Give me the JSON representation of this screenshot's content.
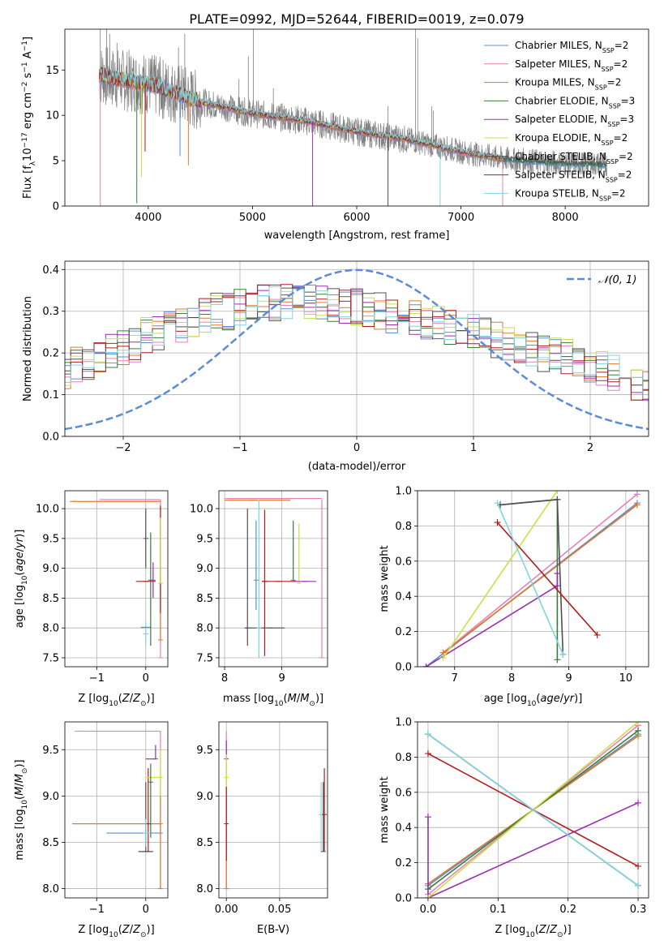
{
  "figure_title": "PLATE=0992, MJD=52644, FIBERID=0019, z=0.079",
  "series_legend": [
    {
      "pre": "Chabrier MILES, N",
      "sub": "SSP",
      "post": "=2",
      "color": "#5b8bd9"
    },
    {
      "pre": "Salpeter MILES, N",
      "sub": "SSP",
      "post": "=2",
      "color": "#e880b8"
    },
    {
      "pre": "Kroupa MILES, N",
      "sub": "SSP",
      "post": "=2",
      "color": "#e07a2a"
    },
    {
      "pre": "Chabrier ELODIE, N",
      "sub": "SSP",
      "post": "=3",
      "color": "#3a7d3a"
    },
    {
      "pre": "Salpeter ELODIE, N",
      "sub": "SSP",
      "post": "=3",
      "color": "#9a2fb0"
    },
    {
      "pre": "Kroupa ELODIE, N",
      "sub": "SSP",
      "post": "=2",
      "color": "#c8e04a"
    },
    {
      "pre": "Chabrier STELIB, N",
      "sub": "SSP",
      "post": "=2",
      "color": "#505050"
    },
    {
      "pre": "Salpeter STELIB, N",
      "sub": "SSP",
      "post": "=2",
      "color": "#b31b1b"
    },
    {
      "pre": "Kroupa STELIB, N",
      "sub": "SSP",
      "post": "=2",
      "color": "#7fd6e0"
    }
  ],
  "chart_data": [
    {
      "id": "spectrum",
      "type": "line",
      "xlabel": "wavelength [Angstrom, rest frame]",
      "ylabel": "Flux [f_λ 10^-17 erg cm^-2 s^-1 A^-1]",
      "xlim": [
        3200,
        8800
      ],
      "ylim": [
        0,
        19.5
      ],
      "xticks": [
        4000,
        5000,
        6000,
        7000,
        8000
      ],
      "yticks": [
        0,
        5,
        10,
        15
      ],
      "data_color": "#808080",
      "continuum": {
        "x": [
          3530,
          3700,
          4000,
          4500,
          5000,
          5500,
          6000,
          6500,
          7000,
          7400,
          8000,
          8400
        ],
        "y": [
          14.5,
          14.0,
          13.5,
          11.5,
          10.2,
          9.4,
          8.2,
          7.3,
          6.0,
          5.2,
          4.7,
          4.6
        ]
      },
      "spikes": [
        [
          3540,
          19.5
        ],
        [
          3600,
          19.5
        ],
        [
          3630,
          19.0
        ],
        [
          3700,
          18.0
        ],
        [
          4110,
          16.0
        ],
        [
          4290,
          17.5
        ],
        [
          4350,
          19.0
        ],
        [
          4870,
          14.0
        ],
        [
          4960,
          16.5
        ],
        [
          5008,
          19.5
        ],
        [
          5200,
          13.0
        ],
        [
          6300,
          11.0
        ],
        [
          6563,
          19.5
        ],
        [
          6585,
          18.5
        ],
        [
          6720,
          11.0
        ],
        [
          6735,
          10.5
        ]
      ],
      "dips": [
        [
          3540,
          0
        ],
        [
          3890,
          0.3
        ],
        [
          3935,
          3.2
        ],
        [
          3970,
          6.0
        ],
        [
          4305,
          5.5
        ],
        [
          4385,
          4.5
        ],
        [
          5577,
          0
        ],
        [
          6300,
          0
        ],
        [
          6800,
          0
        ],
        [
          7400,
          0
        ]
      ],
      "show_legend": true
    },
    {
      "id": "residual_hist",
      "type": "step",
      "xlabel": "(data-model)/error",
      "ylabel": "Normed distribution",
      "xlim": [
        -2.5,
        2.5
      ],
      "ylim": [
        0,
        0.42
      ],
      "xticks": [
        -2,
        -1,
        0,
        1,
        2
      ],
      "yticks": [
        0.0,
        0.1,
        0.2,
        0.3,
        0.4
      ],
      "bin_width": 0.1,
      "gaussian": {
        "mu": 0,
        "sigma": 1,
        "legend_label": "𝒩(0, 1)",
        "color": "#5b8bd9"
      },
      "base_profile": [
        0.08,
        0.09,
        0.09,
        0.1,
        0.11,
        0.11,
        0.12,
        0.13,
        0.14,
        0.15,
        0.17,
        0.18,
        0.19,
        0.2,
        0.21,
        0.22,
        0.24,
        0.25,
        0.26,
        0.27,
        0.28,
        0.29,
        0.3,
        0.3,
        0.31,
        0.31,
        0.32,
        0.32,
        0.32,
        0.33,
        0.32,
        0.32,
        0.32,
        0.31,
        0.31,
        0.3,
        0.3,
        0.29,
        0.28,
        0.28,
        0.27,
        0.27,
        0.26,
        0.26,
        0.25,
        0.24,
        0.23,
        0.22,
        0.22,
        0.21,
        0.2,
        0.2,
        0.19,
        0.18,
        0.17,
        0.16,
        0.15,
        0.14,
        0.13,
        0.12,
        0.11,
        0.1,
        0.09,
        0.08,
        0.07,
        0.07,
        0.06,
        0.05,
        0.05,
        0.05
      ]
    },
    {
      "id": "age_vs_Z",
      "type": "errorbar",
      "xlabel": "Z [log10(Z/Z⊙)]",
      "ylabel": "age [log10(age/yr)]",
      "xlim": [
        -1.65,
        0.45
      ],
      "ylim": [
        7.35,
        10.3
      ],
      "xticks": [
        -1,
        0
      ],
      "yticks": [
        7.5,
        8.0,
        8.5,
        9.0,
        9.5,
        10.0
      ],
      "points": [
        {
          "c": 1,
          "x": 0.3,
          "y": 7.5,
          "xerr": [
            0,
            0
          ],
          "yerr": [
            0,
            2.65
          ]
        },
        {
          "c": 1,
          "x": -0.9,
          "y": 10.15,
          "xerr": [
            0,
            1.2
          ],
          "yerr": [
            0,
            0
          ]
        },
        {
          "c": 2,
          "x": -1.5,
          "y": 10.12,
          "xerr": [
            0,
            1.8
          ],
          "yerr": [
            0,
            0
          ]
        },
        {
          "c": 2,
          "x": 0.3,
          "y": 7.8,
          "xerr": [
            0,
            0
          ],
          "yerr": [
            0,
            2.0
          ]
        },
        {
          "c": 7,
          "x": 0.0,
          "y": 8.78,
          "xerr": [
            0.2,
            0.2
          ],
          "yerr": [
            0,
            0
          ]
        },
        {
          "c": 7,
          "x": 0.3,
          "y": 8.75,
          "xerr": [
            0,
            0
          ],
          "yerr": [
            0.5,
            1.3
          ]
        },
        {
          "c": 6,
          "x": 0.0,
          "y": 9.5,
          "xerr": [
            0,
            0
          ],
          "yerr": [
            0.5,
            0.5
          ]
        },
        {
          "c": 6,
          "x": 0.0,
          "y": 7.9,
          "xerr": [
            0,
            0
          ],
          "yerr": [
            0,
            0
          ]
        },
        {
          "c": 5,
          "x": 0.3,
          "y": 8.75,
          "xerr": [
            0,
            0
          ],
          "yerr": [
            0,
            1.1
          ]
        },
        {
          "c": 8,
          "x": 0.0,
          "y": 7.9,
          "xerr": [
            0,
            0
          ],
          "yerr": [
            0.2,
            0.2
          ]
        },
        {
          "c": 0,
          "x": 0.0,
          "y": 8.01,
          "xerr": [
            0.1,
            0.1
          ],
          "yerr": [
            0,
            0
          ]
        },
        {
          "c": 3,
          "x": 0.1,
          "y": 8.8,
          "xerr": [
            0,
            0
          ],
          "yerr": [
            1.1,
            0.8
          ]
        },
        {
          "c": 4,
          "x": 0.15,
          "y": 8.8,
          "xerr": [
            0,
            0
          ],
          "yerr": [
            0.3,
            0.3
          ]
        }
      ]
    },
    {
      "id": "age_vs_mass",
      "type": "errorbar",
      "xlabel": "mass [log10(M/M⊙)]",
      "ylabel": "",
      "xlim": [
        7.9,
        9.8
      ],
      "ylim": [
        7.35,
        10.3
      ],
      "xticks": [
        8,
        9
      ],
      "yticks": [
        7.5,
        8.0,
        8.5,
        9.0,
        9.5,
        10.0
      ],
      "points": [
        {
          "c": 1,
          "x": 9.7,
          "y": 7.5,
          "xerr": [
            0,
            0
          ],
          "yerr": [
            0,
            2.65
          ]
        },
        {
          "c": 1,
          "x": 9.0,
          "y": 10.17,
          "xerr": [
            1.0,
            0.7
          ],
          "yerr": [
            0,
            0
          ]
        },
        {
          "c": 2,
          "x": 8.5,
          "y": 10.14,
          "xerr": [
            0.5,
            0.65
          ],
          "yerr": [
            0,
            0
          ]
        },
        {
          "c": 6,
          "x": 8.4,
          "y": 8.0,
          "xerr": [
            0,
            0
          ],
          "yerr": [
            0.3,
            2.0
          ]
        },
        {
          "c": 6,
          "x": 8.8,
          "y": 8.0,
          "xerr": [
            0.45,
            0.25
          ],
          "yerr": [
            0,
            0
          ]
        },
        {
          "c": 8,
          "x": 8.6,
          "y": 8.0,
          "xerr": [
            0,
            0
          ],
          "yerr": [
            0.5,
            2.15
          ]
        },
        {
          "c": 7,
          "x": 8.7,
          "y": 8.78,
          "xerr": [
            0,
            0
          ],
          "yerr": [
            1.25,
            1.2
          ]
        },
        {
          "c": 7,
          "x": 8.95,
          "y": 8.78,
          "xerr": [
            0.3,
            0.3
          ],
          "yerr": [
            0,
            0
          ]
        },
        {
          "c": 5,
          "x": 9.3,
          "y": 8.75,
          "xerr": [
            0,
            0
          ],
          "yerr": [
            0,
            1.0
          ]
        },
        {
          "c": 3,
          "x": 9.2,
          "y": 8.8,
          "xerr": [
            0,
            0
          ],
          "yerr": [
            0,
            1.0
          ]
        },
        {
          "c": 4,
          "x": 9.4,
          "y": 8.78,
          "xerr": [
            0.2,
            0.2
          ],
          "yerr": [
            0,
            0
          ]
        },
        {
          "c": 0,
          "x": 8.55,
          "y": 8.8,
          "xerr": [
            0,
            0
          ],
          "yerr": [
            0.5,
            1.0
          ]
        }
      ]
    },
    {
      "id": "weight_vs_age",
      "type": "line_markers",
      "xlabel": "age [log10(age/yr)]",
      "ylabel": "mass weight",
      "xlim": [
        6.35,
        10.4
      ],
      "ylim": [
        0,
        1
      ],
      "xticks": [
        7,
        8,
        9,
        10
      ],
      "yticks": [
        0.0,
        0.2,
        0.4,
        0.6,
        0.8,
        1.0
      ],
      "lines": [
        {
          "c": 0,
          "x": [
            6.5,
            10.2
          ],
          "y": [
            0.0,
            0.93
          ]
        },
        {
          "c": 1,
          "x": 6.8,
          "y": 0.08,
          "x2": 10.2,
          "y2": 0.98
        },
        {
          "c": 2,
          "x": [
            6.8,
            10.2
          ],
          "y": [
            0.08,
            0.92
          ]
        },
        {
          "c": 3,
          "x": [
            7.8,
            8.8,
            8.8
          ],
          "y": [
            0.92,
            0.95,
            0.04
          ]
        },
        {
          "c": 4,
          "x": [
            6.5,
            8.8,
            8.8
          ],
          "y": [
            0.0,
            0.46,
            0.53
          ]
        },
        {
          "c": 5,
          "x": [
            6.8,
            8.8
          ],
          "y": [
            0.05,
            1.0
          ]
        },
        {
          "c": 6,
          "x": [
            7.8,
            8.8,
            8.9
          ],
          "y": [
            0.92,
            0.95,
            0.07
          ]
        },
        {
          "c": 7,
          "x": [
            7.75,
            9.5
          ],
          "y": [
            0.82,
            0.18
          ]
        },
        {
          "c": 8,
          "x": [
            7.75,
            8.9
          ],
          "y": [
            0.93,
            0.07
          ]
        }
      ]
    },
    {
      "id": "mass_vs_Z",
      "type": "errorbar",
      "xlabel": "Z [log10(Z/Z⊙)]",
      "ylabel": "mass [log10(M/M⊙)]",
      "xlim": [
        -1.65,
        0.45
      ],
      "ylim": [
        7.9,
        9.8
      ],
      "xticks": [
        -1,
        0
      ],
      "yticks": [
        8.0,
        8.5,
        9.0,
        9.5
      ],
      "points": [
        {
          "c": 1,
          "x": 0.3,
          "y": 8.0,
          "xerr": [
            0,
            0
          ],
          "yerr": [
            0,
            1.7
          ]
        },
        {
          "c": 1,
          "x": -1.4,
          "y": 9.7,
          "xerr": [
            0,
            1.7
          ],
          "yerr": [
            0,
            0
          ]
        },
        {
          "c": 2,
          "x": 0.3,
          "y": 8.7,
          "xerr": [
            1.8,
            0
          ],
          "yerr": [
            0,
            0
          ]
        },
        {
          "c": 2,
          "x": 0.3,
          "y": 8.0,
          "xerr": [
            0,
            0
          ],
          "yerr": [
            0,
            1.1
          ]
        },
        {
          "c": 0,
          "x": 0.3,
          "y": 8.6,
          "xerr": [
            1.1,
            0
          ],
          "yerr": [
            0,
            0
          ]
        },
        {
          "c": 6,
          "x": 0.0,
          "y": 8.4,
          "xerr": [
            0.15,
            0.15
          ],
          "yerr": [
            0,
            0.75
          ]
        },
        {
          "c": 7,
          "x": 0.05,
          "y": 8.7,
          "xerr": [
            0,
            0
          ],
          "yerr": [
            0.3,
            0.6
          ]
        },
        {
          "c": 4,
          "x": 0.2,
          "y": 9.4,
          "xerr": [
            0.2,
            0
          ],
          "yerr": [
            0,
            0.15
          ]
        },
        {
          "c": 5,
          "x": 0.3,
          "y": 9.2,
          "xerr": [
            0.3,
            0
          ],
          "yerr": [
            0.2,
            0.3
          ]
        },
        {
          "c": 3,
          "x": 0.1,
          "y": 9.15,
          "xerr": [
            0,
            0
          ],
          "yerr": [
            0.6,
            0.2
          ]
        },
        {
          "c": 8,
          "x": 0.0,
          "y": 8.6,
          "xerr": [
            0,
            0.1
          ],
          "yerr": [
            0.15,
            0.15
          ]
        }
      ]
    },
    {
      "id": "mass_vs_ebv",
      "type": "errorbar",
      "xlabel": "E(B-V)",
      "ylabel": "",
      "xlim": [
        -0.007,
        0.095
      ],
      "ylim": [
        7.9,
        9.8
      ],
      "xticks": [
        0.0,
        0.05
      ],
      "yticks": [
        8.0,
        8.5,
        9.0,
        9.5
      ],
      "points": [
        {
          "c": 1,
          "x": 0.0,
          "y": 8.0,
          "xerr": [
            0,
            0
          ],
          "yerr": [
            0,
            1.7
          ]
        },
        {
          "c": 2,
          "x": 0.0,
          "y": 8.0,
          "xerr": [
            0,
            0
          ],
          "yerr": [
            0,
            1.1
          ]
        },
        {
          "c": 4,
          "x": 0.0,
          "y": 9.4,
          "xerr": [
            0,
            0
          ],
          "yerr": [
            0,
            0.2
          ]
        },
        {
          "c": 5,
          "x": 0.0,
          "y": 9.2,
          "xerr": [
            0,
            0
          ],
          "yerr": [
            0.2,
            0.25
          ]
        },
        {
          "c": 7,
          "x": 0.0,
          "y": 8.7,
          "xerr": [
            0,
            0
          ],
          "yerr": [
            0.4,
            0.4
          ]
        },
        {
          "c": 8,
          "x": 0.089,
          "y": 8.8,
          "xerr": [
            0,
            0
          ],
          "yerr": [
            0.4,
            0.35
          ]
        },
        {
          "c": 6,
          "x": 0.091,
          "y": 8.4,
          "xerr": [
            0,
            0
          ],
          "yerr": [
            0,
            0.75
          ]
        },
        {
          "c": 7,
          "x": 0.092,
          "y": 8.8,
          "xerr": [
            0,
            0
          ],
          "yerr": [
            0.4,
            0.5
          ]
        }
      ]
    },
    {
      "id": "weight_vs_Z",
      "type": "line_markers",
      "xlabel": "Z [log10(Z/Z⊙)]",
      "ylabel": "mass weight",
      "xlim": [
        -0.015,
        0.315
      ],
      "ylim": [
        0,
        1
      ],
      "xticks": [
        0.0,
        0.1,
        0.2,
        0.3
      ],
      "yticks": [
        0.0,
        0.2,
        0.4,
        0.6,
        0.8,
        1.0
      ],
      "lines": [
        {
          "c": 0,
          "x": [
            0,
            0.3
          ],
          "y": [
            0.07,
            0.93
          ]
        },
        {
          "c": 1,
          "x": [
            0,
            0.3
          ],
          "y": [
            0.02,
            0.98
          ]
        },
        {
          "c": 2,
          "x": [
            0,
            0.3
          ],
          "y": [
            0.08,
            0.92
          ]
        },
        {
          "c": 3,
          "x": [
            0,
            0.3
          ],
          "y": [
            0.05,
            0.95
          ]
        },
        {
          "c": 4,
          "x": [
            0,
            0.3
          ],
          "y": [
            0.0,
            0.54
          ]
        },
        {
          "c": 4,
          "x": [
            0,
            0
          ],
          "y": [
            0.0,
            0.46
          ]
        },
        {
          "c": 5,
          "x": [
            0,
            0.3
          ],
          "y": [
            0.0,
            1.0
          ]
        },
        {
          "c": 6,
          "x": [
            0,
            0.3
          ],
          "y": [
            0.93,
            0.07
          ]
        },
        {
          "c": 7,
          "x": [
            0,
            0.3
          ],
          "y": [
            0.82,
            0.18
          ]
        },
        {
          "c": 8,
          "x": [
            0,
            0.3
          ],
          "y": [
            0.93,
            0.07
          ]
        }
      ]
    }
  ]
}
